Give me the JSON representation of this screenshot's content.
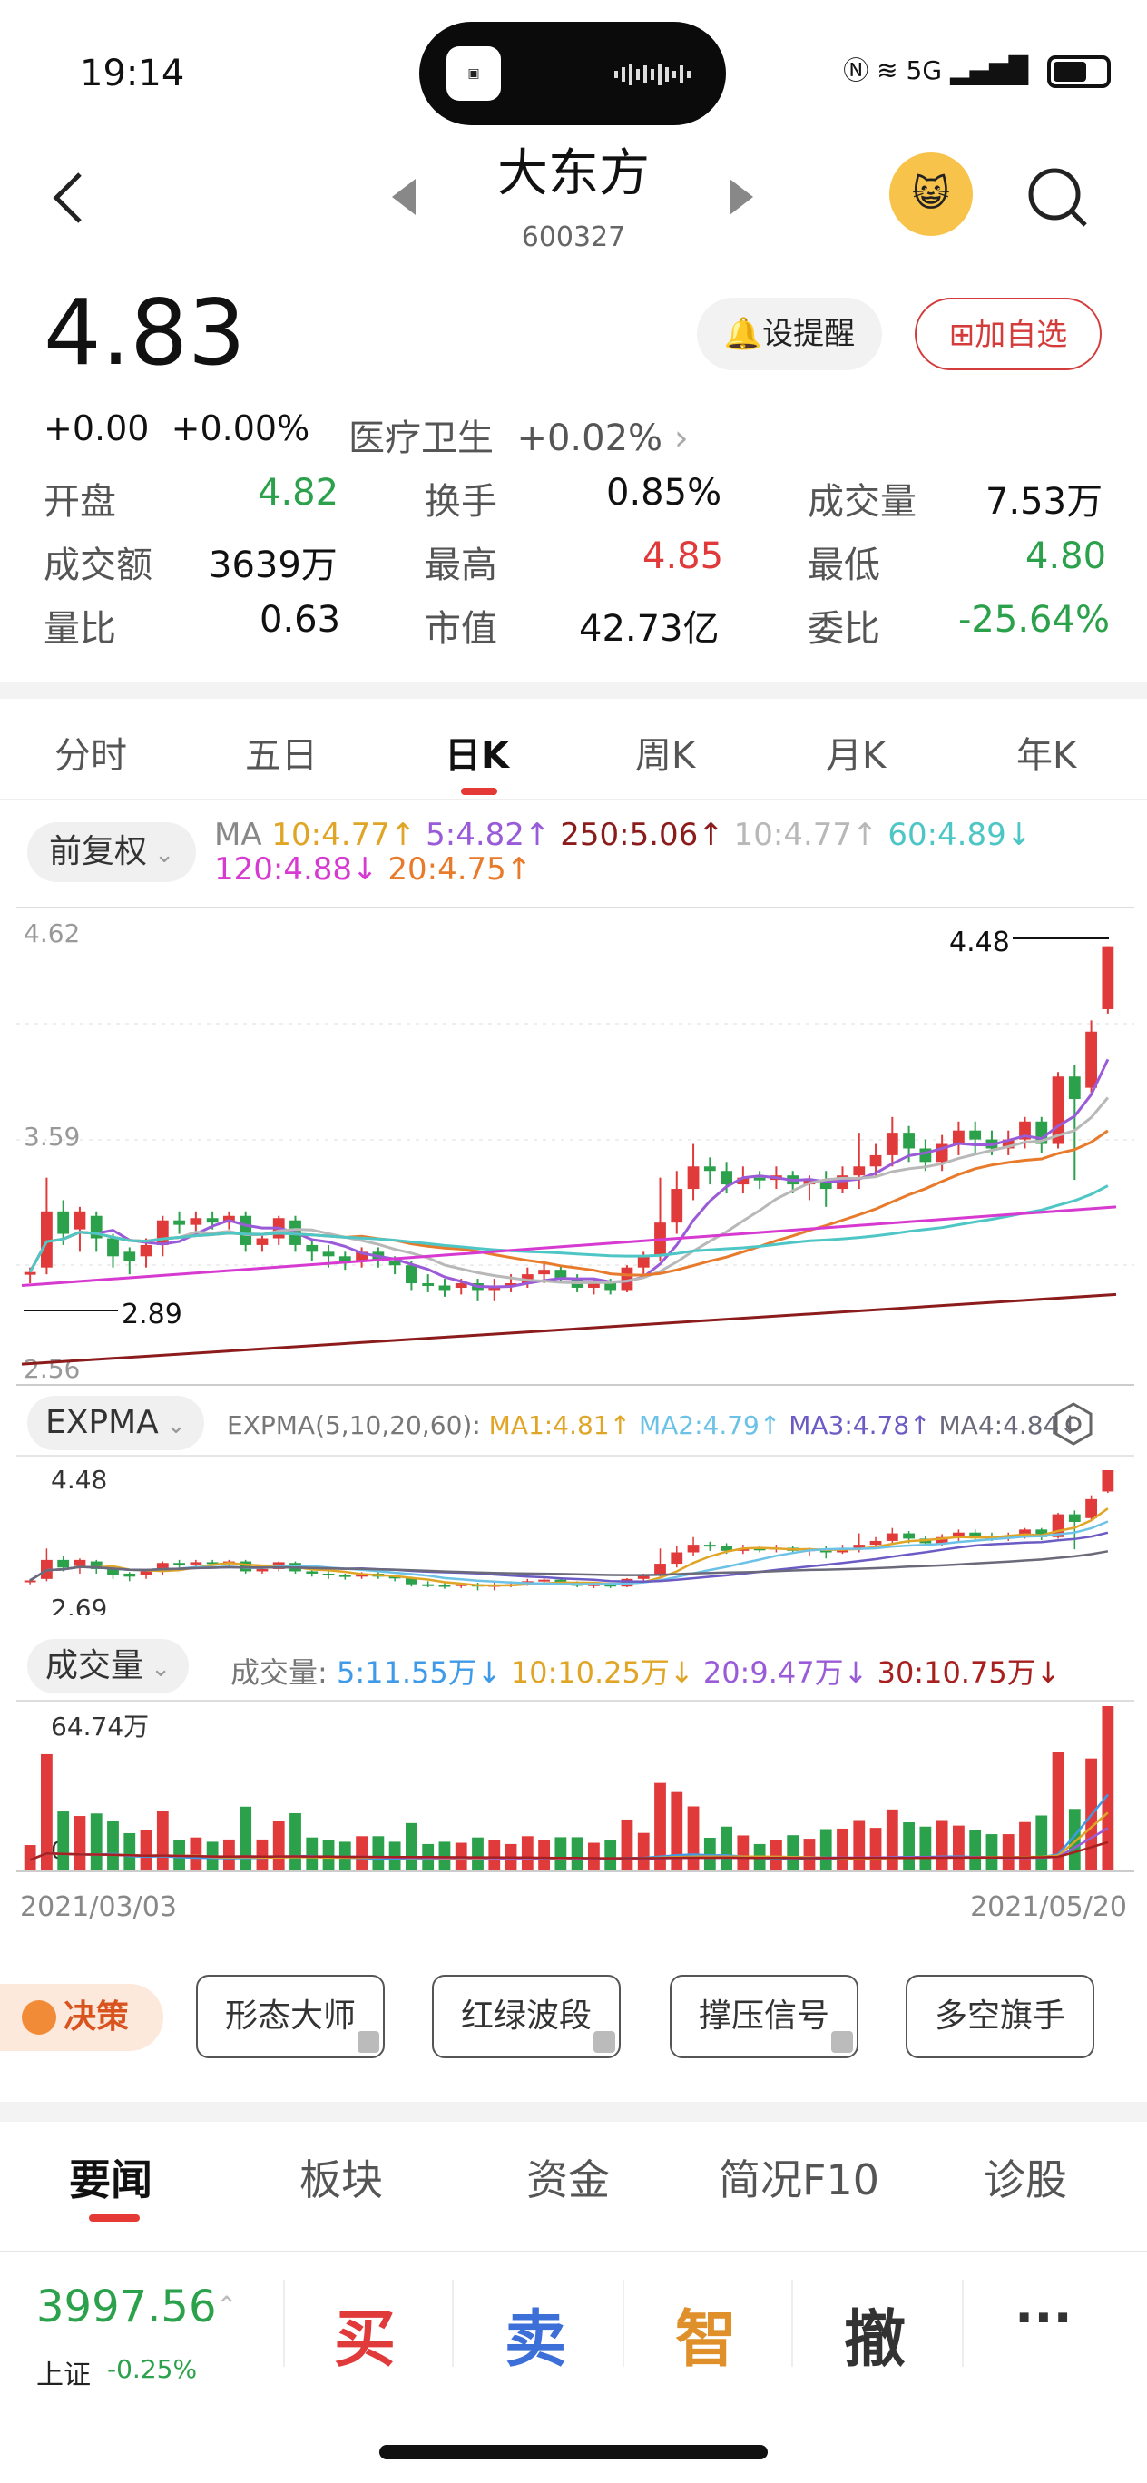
{
  "status_bar": {
    "time": "19:14",
    "network": "5G"
  },
  "header": {
    "title": "大东方",
    "code": "600327"
  },
  "quote": {
    "price": "4.83",
    "change": "+0.00",
    "change_pct": "+0.00%",
    "sector_name": "医疗卫生",
    "sector_change": "+0.02%",
    "remind_label": "设提醒",
    "add_label": "加自选"
  },
  "stats": {
    "open_label": "开盘",
    "open": "4.82",
    "turnover_label": "换手",
    "turnover": "0.85%",
    "volume_label": "成交量",
    "volume": "7.53万",
    "amount_label": "成交额",
    "amount": "3639万",
    "high_label": "最高",
    "high": "4.85",
    "low_label": "最低",
    "low": "4.80",
    "vol_ratio_label": "量比",
    "vol_ratio": "0.63",
    "mktcap_label": "市值",
    "mktcap": "42.73亿",
    "bid_ratio_label": "委比",
    "bid_ratio": "-25.64%"
  },
  "tabs": [
    "分时",
    "五日",
    "日K",
    "周K",
    "月K",
    "年K"
  ],
  "kline": {
    "adjust_label": "前复权",
    "ma_prefix": "MA",
    "ma10": "10:4.77↑",
    "ma5": "5:4.82↑",
    "ma250": "250:5.06↑",
    "ma10b": "10:4.77↑",
    "ma60": "60:4.89↓",
    "ma120": "120:4.88↓",
    "ma20": "20:4.75↑",
    "price_top": "4.62",
    "price_mid": "3.59",
    "price_bottom": "2.56",
    "max_label": "4.48",
    "min_label": "2.89"
  },
  "expma": {
    "name": "EXPMA",
    "params": "EXPMA(5,10,20,60):",
    "ma1": "MA1:4.81↑",
    "ma2": "MA2:4.79↑",
    "ma3": "MA3:4.78↑",
    "ma4": "MA4:4.84↓",
    "top": "4.48",
    "bottom": "2.69"
  },
  "volume": {
    "name": "成交量",
    "prefix": "成交量:",
    "v5": "5:11.55万↓",
    "v10": "10:10.25万↓",
    "v20": "20:9.47万↓",
    "v30": "30:10.75万↓",
    "max": "64.74万",
    "zero": "0"
  },
  "dates": {
    "start": "2021/03/03",
    "end": "2021/05/20"
  },
  "tools": {
    "decision": "决策",
    "items": [
      "形态大师",
      "红绿波段",
      "撑压信号",
      "多空旗手"
    ]
  },
  "news_tabs": [
    "要闻",
    "板块",
    "资金",
    "简况F10",
    "诊股"
  ],
  "bottom": {
    "index_value": "3997.56",
    "index_name": "上证",
    "index_pct": "-0.25%",
    "buy": "买",
    "sell": "卖",
    "smart": "智",
    "cancel": "撤",
    "more": "···"
  },
  "colors": {
    "up": "#e03a3a",
    "down": "#2aa14a"
  },
  "chart_data": {
    "type": "candlestick",
    "x_range": [
      "2021/03/03",
      "2021/05/20"
    ],
    "ylim": [
      2.56,
      4.62
    ],
    "max_price": 4.48,
    "min_price": 2.89,
    "candles": [
      [
        3.02,
        3.03,
        2.98,
        3.05
      ],
      [
        3.05,
        3.3,
        3.02,
        3.45
      ],
      [
        3.3,
        3.2,
        3.15,
        3.35
      ],
      [
        3.22,
        3.3,
        3.12,
        3.32
      ],
      [
        3.28,
        3.18,
        3.12,
        3.3
      ],
      [
        3.18,
        3.1,
        3.05,
        3.2
      ],
      [
        3.12,
        3.08,
        3.02,
        3.14
      ],
      [
        3.1,
        3.15,
        3.05,
        3.18
      ],
      [
        3.15,
        3.26,
        3.1,
        3.28
      ],
      [
        3.26,
        3.24,
        3.2,
        3.3
      ],
      [
        3.24,
        3.27,
        3.2,
        3.3
      ],
      [
        3.27,
        3.25,
        3.22,
        3.3
      ],
      [
        3.25,
        3.28,
        3.22,
        3.3
      ],
      [
        3.28,
        3.15,
        3.12,
        3.3
      ],
      [
        3.15,
        3.18,
        3.12,
        3.2
      ],
      [
        3.18,
        3.27,
        3.15,
        3.28
      ],
      [
        3.26,
        3.15,
        3.12,
        3.28
      ],
      [
        3.15,
        3.12,
        3.08,
        3.18
      ],
      [
        3.12,
        3.1,
        3.05,
        3.15
      ],
      [
        3.1,
        3.08,
        3.04,
        3.12
      ],
      [
        3.08,
        3.12,
        3.05,
        3.14
      ],
      [
        3.12,
        3.08,
        3.05,
        3.14
      ],
      [
        3.08,
        3.06,
        3.02,
        3.1
      ],
      [
        3.06,
        2.98,
        2.95,
        3.08
      ],
      [
        2.98,
        2.97,
        2.94,
        3.02
      ],
      [
        2.97,
        2.95,
        2.92,
        3.0
      ],
      [
        2.96,
        2.98,
        2.93,
        3.0
      ],
      [
        2.98,
        2.95,
        2.9,
        3.0
      ],
      [
        2.95,
        2.97,
        2.9,
        3.0
      ],
      [
        2.97,
        2.98,
        2.94,
        3.02
      ],
      [
        2.98,
        3.02,
        2.96,
        3.05
      ],
      [
        3.02,
        3.04,
        2.98,
        3.08
      ],
      [
        3.04,
        3.0,
        2.98,
        3.06
      ],
      [
        3.0,
        2.96,
        2.94,
        3.02
      ],
      [
        2.96,
        2.98,
        2.93,
        3.0
      ],
      [
        2.98,
        2.95,
        2.93,
        3.0
      ],
      [
        2.95,
        3.05,
        2.94,
        3.06
      ],
      [
        3.05,
        3.1,
        3.02,
        3.12
      ],
      [
        3.1,
        3.25,
        3.08,
        3.45
      ],
      [
        3.25,
        3.4,
        3.2,
        3.48
      ],
      [
        3.4,
        3.5,
        3.35,
        3.6
      ],
      [
        3.5,
        3.48,
        3.42,
        3.54
      ],
      [
        3.48,
        3.42,
        3.38,
        3.52
      ],
      [
        3.42,
        3.45,
        3.38,
        3.5
      ],
      [
        3.45,
        3.44,
        3.4,
        3.48
      ],
      [
        3.44,
        3.46,
        3.4,
        3.5
      ],
      [
        3.46,
        3.42,
        3.38,
        3.48
      ],
      [
        3.42,
        3.44,
        3.35,
        3.46
      ],
      [
        3.44,
        3.4,
        3.32,
        3.48
      ],
      [
        3.4,
        3.46,
        3.38,
        3.5
      ],
      [
        3.46,
        3.5,
        3.4,
        3.65
      ],
      [
        3.5,
        3.55,
        3.45,
        3.6
      ],
      [
        3.55,
        3.65,
        3.5,
        3.72
      ],
      [
        3.65,
        3.58,
        3.52,
        3.68
      ],
      [
        3.58,
        3.52,
        3.48,
        3.62
      ],
      [
        3.52,
        3.6,
        3.48,
        3.64
      ],
      [
        3.6,
        3.66,
        3.55,
        3.7
      ],
      [
        3.66,
        3.62,
        3.55,
        3.7
      ],
      [
        3.62,
        3.58,
        3.55,
        3.66
      ],
      [
        3.58,
        3.62,
        3.55,
        3.66
      ],
      [
        3.62,
        3.7,
        3.58,
        3.72
      ],
      [
        3.7,
        3.6,
        3.56,
        3.72
      ],
      [
        3.6,
        3.9,
        3.58,
        3.92
      ],
      [
        3.9,
        3.8,
        3.44,
        3.95
      ],
      [
        3.85,
        4.1,
        3.82,
        4.15
      ],
      [
        4.2,
        4.48,
        4.18,
        4.48
      ]
    ],
    "volume_max": "64.74万"
  }
}
